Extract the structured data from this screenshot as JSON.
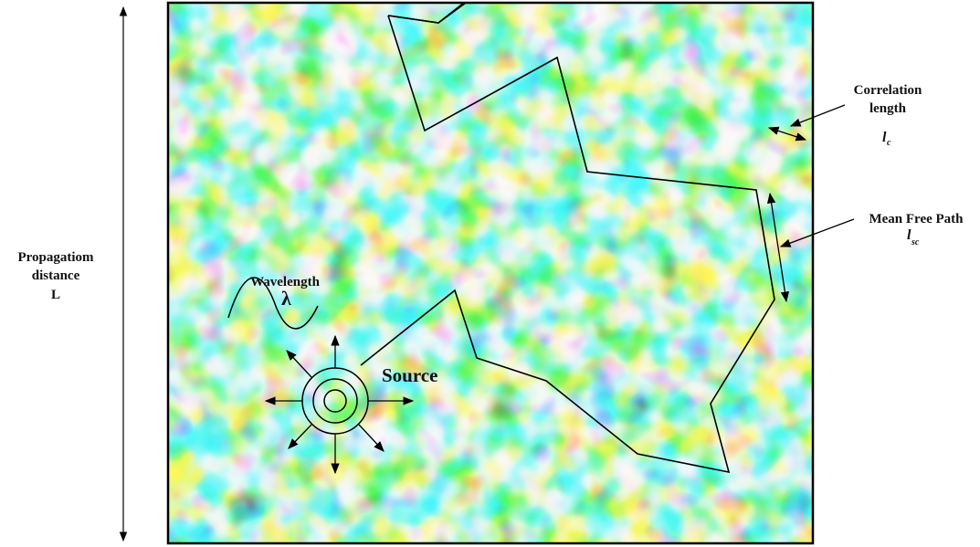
{
  "labels": {
    "propagation": [
      "Propagatiom",
      "distance",
      "L"
    ],
    "correlation": [
      "Correlation",
      "length"
    ],
    "correlation_symbol": "l",
    "correlation_subscript": "c",
    "mean_free_path": "Mean Free Path",
    "mfp_symbol": "l",
    "mfp_subscript": "sc",
    "wavelength": "Wavelength",
    "lambda": "λ",
    "source": "Source"
  },
  "colors": {
    "field_low": "#0a1fd0",
    "field_mid_low": "#1aa8f0",
    "field_mid": "#3ef0d8",
    "field_mid_high": "#f2e82a",
    "field_high": "#f0841a",
    "field_peak": "#c8180e",
    "line": "#000000"
  }
}
